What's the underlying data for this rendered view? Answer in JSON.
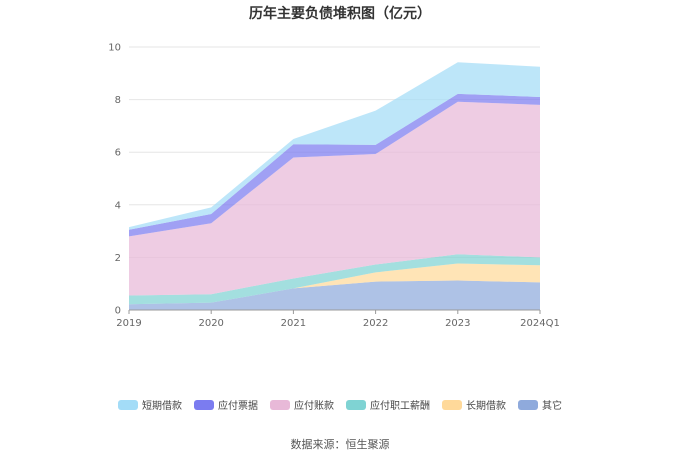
{
  "title": "历年主要负债堆积图（亿元）",
  "source": "数据来源：恒生聚源",
  "chart_data": {
    "type": "area",
    "stacked": true,
    "x": [
      "2019",
      "2020",
      "2021",
      "2022",
      "2023",
      "2024Q1"
    ],
    "ylim": [
      0,
      10
    ],
    "yticks": [
      0,
      2,
      4,
      6,
      8,
      10
    ],
    "grid": true,
    "legend_position": "bottom",
    "series": [
      {
        "name": "其它",
        "color": "#8faadc",
        "values": [
          0.22,
          0.28,
          0.82,
          1.08,
          1.12,
          1.05
        ]
      },
      {
        "name": "长期借款",
        "color": "#ffd99a",
        "values": [
          0.0,
          0.0,
          0.0,
          0.35,
          0.65,
          0.65
        ]
      },
      {
        "name": "应付职工薪酬",
        "color": "#7fd3d3",
        "values": [
          0.33,
          0.32,
          0.38,
          0.3,
          0.35,
          0.3
        ]
      },
      {
        "name": "应付账款",
        "color": "#e8b9d8",
        "values": [
          2.25,
          2.7,
          4.6,
          4.2,
          5.8,
          5.8
        ]
      },
      {
        "name": "应付票据",
        "color": "#7b7cf0",
        "values": [
          0.25,
          0.35,
          0.5,
          0.35,
          0.3,
          0.3
        ]
      },
      {
        "name": "短期借款",
        "color": "#a3dcf7",
        "values": [
          0.1,
          0.25,
          0.2,
          1.3,
          1.2,
          1.15
        ]
      }
    ]
  },
  "legend_order": [
    "短期借款",
    "应付票据",
    "应付账款",
    "应付职工薪酬",
    "长期借款",
    "其它"
  ]
}
